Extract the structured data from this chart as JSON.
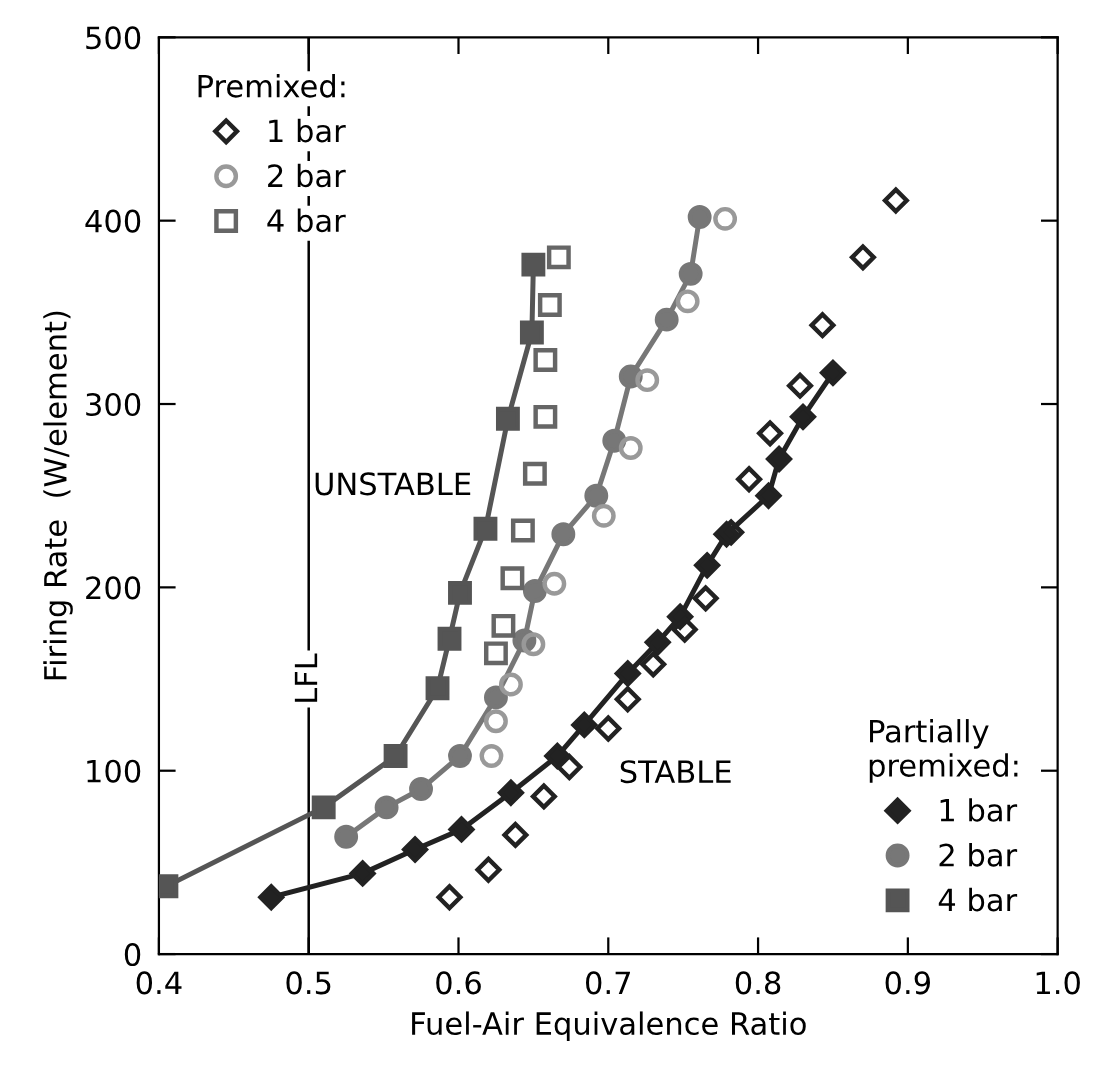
{
  "chart_data": {
    "type": "scatter",
    "xlabel": "Fuel-Air Equivalence Ratio",
    "ylabel": "Firing Rate  (W/element)",
    "xlim": [
      0.4,
      1.0
    ],
    "ylim": [
      0,
      500
    ],
    "xticks": [
      0.4,
      0.5,
      0.6,
      0.7,
      0.8,
      0.9,
      {
        "value": 1.0,
        "label": "1.0"
      }
    ],
    "yticks": [
      0,
      100,
      200,
      300,
      400,
      500
    ],
    "grid": false,
    "legend": [
      "top left",
      "bottom right"
    ],
    "legend_title": [
      "Premixed:",
      "Partially\npremixed:"
    ],
    "ref_lines": [
      {
        "axis": "x",
        "value": 0.5,
        "label": "LFL",
        "color": "#000000"
      }
    ],
    "annotations": [
      "UNSTABLE",
      "STABLE"
    ],
    "series": [
      {
        "name": "1 bar",
        "marker": "diamond",
        "color": "#222222",
        "x": [
          0.594,
          0.62,
          0.638,
          0.657,
          0.674,
          0.7,
          0.713,
          0.73,
          0.751,
          0.765,
          0.782,
          0.794,
          0.808,
          0.828,
          0.843,
          0.87,
          0.892
        ],
        "values": [
          31,
          46,
          65,
          86,
          102,
          123,
          139,
          158,
          177,
          194,
          230,
          259,
          284,
          310,
          343,
          380,
          411
        ]
      },
      {
        "name": "2 bar",
        "marker": "circle",
        "color": "#999999",
        "x": [
          0.622,
          0.625,
          0.635,
          0.65,
          0.664,
          0.697,
          0.715,
          0.726,
          0.753,
          0.778
        ],
        "values": [
          108,
          127,
          147,
          169,
          202,
          239,
          276,
          313,
          356,
          401
        ]
      },
      {
        "name": "4 bar",
        "marker": "square",
        "color": "#666666",
        "x": [
          0.625,
          0.63,
          0.636,
          0.643,
          0.651,
          0.658,
          0.658,
          0.661,
          0.667
        ],
        "values": [
          164,
          179,
          205,
          231,
          262,
          293,
          324,
          354,
          380
        ]
      },
      {
        "name": "1 bar",
        "type": "line",
        "marker": "diamond",
        "color": "#222222",
        "x": [
          0.475,
          0.536,
          0.571,
          0.602,
          0.635,
          0.666,
          0.684,
          0.713,
          0.733,
          0.748,
          0.766,
          0.779,
          0.807,
          0.814,
          0.83,
          0.85
        ],
        "values": [
          31,
          44,
          57,
          68,
          88,
          108,
          125,
          153,
          170,
          184,
          212,
          229,
          250,
          270,
          293,
          317
        ]
      },
      {
        "name": "2 bar",
        "type": "line",
        "marker": "circle",
        "color": "#777777",
        "x": [
          0.525,
          0.552,
          0.575,
          0.601,
          0.625,
          0.644,
          0.651,
          0.67,
          0.692,
          0.704,
          0.715,
          0.739,
          0.755,
          0.761
        ],
        "values": [
          64,
          80,
          90,
          108,
          140,
          171,
          198,
          229,
          250,
          280,
          315,
          346,
          371,
          402
        ]
      },
      {
        "name": "4 bar",
        "type": "line",
        "marker": "square",
        "color": "#555555",
        "x": [
          0.405,
          0.51,
          0.558,
          0.586,
          0.594,
          0.601,
          0.618,
          0.633,
          0.649,
          0.65
        ],
        "values": [
          37,
          80,
          108,
          145,
          172,
          197,
          232,
          292,
          339,
          376
        ]
      }
    ]
  }
}
